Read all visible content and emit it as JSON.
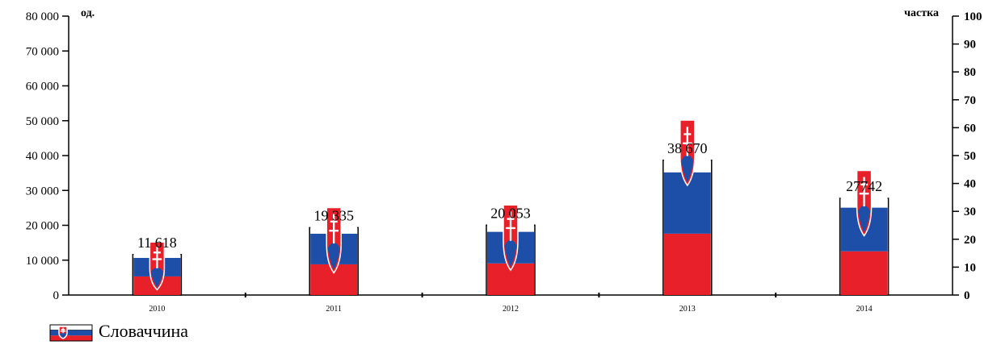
{
  "chart_data": {
    "type": "bar",
    "categories": [
      "2010",
      "2011",
      "2012",
      "2013",
      "2014"
    ],
    "values": [
      11618,
      19335,
      20053,
      38670,
      27742
    ],
    "value_labels": [
      "11 618",
      "19 335",
      "20 053",
      "38 670",
      "27742"
    ],
    "share_values": [
      20,
      33,
      34,
      66,
      47
    ],
    "y_left": {
      "title": "од.",
      "ylim": [
        0,
        80000
      ],
      "ticks": [
        0,
        10000,
        20000,
        30000,
        40000,
        50000,
        60000,
        70000,
        80000
      ],
      "tick_labels": [
        "0",
        "10 000",
        "20 000",
        "30 000",
        "40 000",
        "50 000",
        "60 000",
        "70 000",
        "80 000"
      ]
    },
    "y_right": {
      "title": "частка",
      "ylim": [
        0,
        100
      ],
      "ticks": [
        0,
        10,
        20,
        30,
        40,
        50,
        60,
        70,
        80,
        90,
        100
      ],
      "tick_labels": [
        "0",
        "10",
        "20",
        "30",
        "40",
        "50",
        "60",
        "70",
        "80",
        "90",
        "100"
      ]
    },
    "legend": {
      "label": "Словаччина",
      "placement": "bottom-left"
    },
    "colors": {
      "white": "#ffffff",
      "blue": "#1e4fa8",
      "red": "#e8202a",
      "outline": "#000000"
    },
    "grid": false
  }
}
